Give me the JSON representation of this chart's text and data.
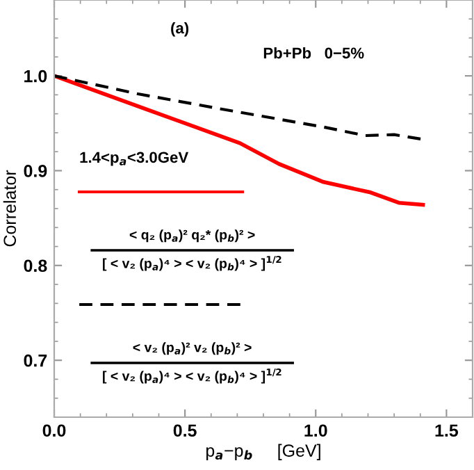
{
  "chart_data": {
    "type": "line",
    "xlabel": "p$_{a}$−p$_{b}$     [GeV]",
    "ylabel": "Correlator",
    "xlim": [
      0,
      1.6
    ],
    "ylim": [
      0.64,
      1.08
    ],
    "xticks": [
      {
        "value": 0,
        "label": "0.0"
      },
      0.5,
      {
        "value": 1,
        "label": "1.0"
      },
      1.5
    ],
    "yticks": [
      0.7,
      0.8,
      0.9,
      {
        "value": 1,
        "label": "1.0"
      }
    ],
    "grid": false,
    "legend_title": "1.4<p$_{a}$<3.0GeV",
    "annotations": [
      "(a)",
      "Pb+Pb   0−5%"
    ],
    "series": [
      {
        "name": "< q₂ (p$_{a}$)² q₂* (p$_{b}$)² >\n[ < v₂ (p$_{a}$)⁴ > < v₂ (p$_{b}$)⁴ > ]$^{1/2}$",
        "color": "#ff0000",
        "line_style": "solid",
        "x": [
          0,
          0.35,
          0.71,
          0.86,
          1.03,
          1.21,
          1.32,
          1.41
        ],
        "values": [
          1.0,
          0.965,
          0.929,
          0.907,
          0.888,
          0.877,
          0.866,
          0.864
        ]
      },
      {
        "name": "< v₂ (p$_{a}$)² v₂ (p$_{b}$)² >\n[ < v₂ (p$_{a}$)⁴ > < v₂ (p$_{b}$)⁴ > ]$^{1/2}$",
        "color": "#000000",
        "line_style": "dashed",
        "x": [
          0,
          0.32,
          0.68,
          1.03,
          1.19,
          1.3,
          1.41
        ],
        "values": [
          1.0,
          0.981,
          0.963,
          0.946,
          0.937,
          0.938,
          0.933
        ]
      }
    ]
  }
}
